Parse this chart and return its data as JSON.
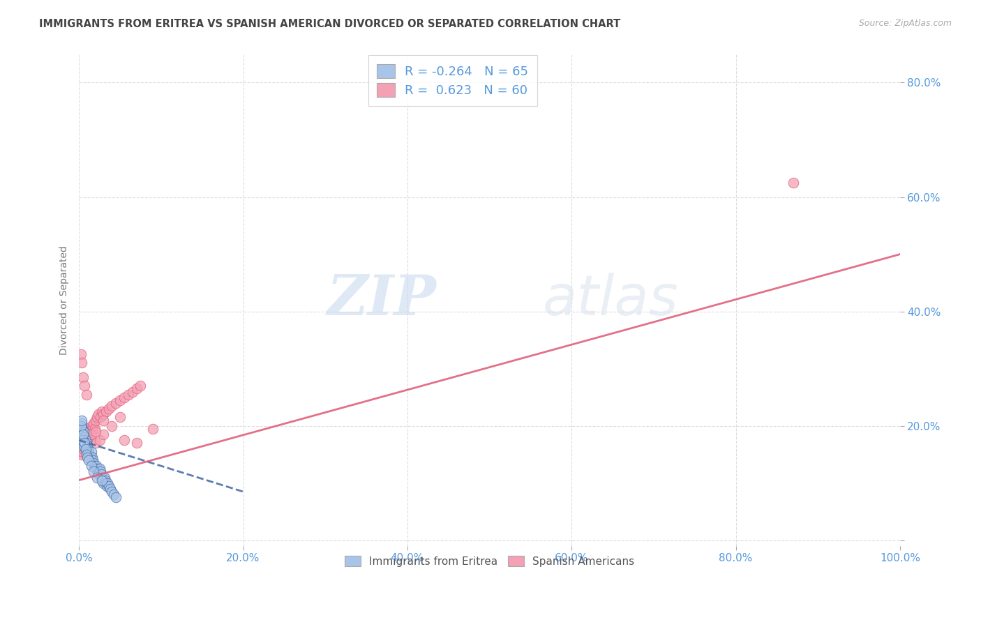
{
  "title": "IMMIGRANTS FROM ERITREA VS SPANISH AMERICAN DIVORCED OR SEPARATED CORRELATION CHART",
  "source": "Source: ZipAtlas.com",
  "ylabel": "Divorced or Separated",
  "watermark_zip": "ZIP",
  "watermark_atlas": "atlas",
  "xlim": [
    0.0,
    1.0
  ],
  "ylim": [
    -0.01,
    0.85
  ],
  "xticks": [
    0.0,
    0.2,
    0.4,
    0.6,
    0.8,
    1.0
  ],
  "yticks": [
    0.0,
    0.2,
    0.4,
    0.6,
    0.8
  ],
  "ytick_labels": [
    "",
    "20.0%",
    "40.0%",
    "60.0%",
    "80.0%"
  ],
  "xtick_labels": [
    "0.0%",
    "20.0%",
    "40.0%",
    "60.0%",
    "80.0%",
    "100.0%"
  ],
  "blue_R": -0.264,
  "blue_N": 65,
  "pink_R": 0.623,
  "pink_N": 60,
  "blue_color": "#a8c4e8",
  "pink_color": "#f4a0b5",
  "blue_line_color": "#4a6fa5",
  "pink_line_color": "#e0607a",
  "axis_label_color": "#5599dd",
  "title_color": "#444444",
  "grid_color": "#dddddd",
  "background_color": "#ffffff",
  "blue_scatter_x": [
    0.001,
    0.002,
    0.002,
    0.003,
    0.003,
    0.003,
    0.004,
    0.004,
    0.005,
    0.005,
    0.006,
    0.006,
    0.007,
    0.007,
    0.008,
    0.008,
    0.009,
    0.01,
    0.01,
    0.011,
    0.012,
    0.013,
    0.014,
    0.015,
    0.015,
    0.016,
    0.017,
    0.018,
    0.019,
    0.02,
    0.021,
    0.022,
    0.023,
    0.024,
    0.025,
    0.026,
    0.027,
    0.028,
    0.029,
    0.03,
    0.031,
    0.032,
    0.033,
    0.034,
    0.035,
    0.036,
    0.038,
    0.04,
    0.042,
    0.045,
    0.001,
    0.002,
    0.003,
    0.004,
    0.005,
    0.006,
    0.007,
    0.008,
    0.009,
    0.01,
    0.012,
    0.015,
    0.018,
    0.022,
    0.028
  ],
  "blue_scatter_y": [
    0.195,
    0.185,
    0.2,
    0.175,
    0.19,
    0.205,
    0.18,
    0.195,
    0.17,
    0.185,
    0.175,
    0.19,
    0.165,
    0.18,
    0.16,
    0.175,
    0.17,
    0.165,
    0.155,
    0.16,
    0.155,
    0.15,
    0.145,
    0.14,
    0.155,
    0.145,
    0.14,
    0.135,
    0.13,
    0.125,
    0.13,
    0.125,
    0.12,
    0.115,
    0.125,
    0.12,
    0.115,
    0.11,
    0.105,
    0.1,
    0.11,
    0.105,
    0.1,
    0.095,
    0.1,
    0.095,
    0.09,
    0.085,
    0.08,
    0.075,
    0.165,
    0.2,
    0.21,
    0.175,
    0.185,
    0.165,
    0.17,
    0.16,
    0.15,
    0.145,
    0.14,
    0.13,
    0.12,
    0.11,
    0.105
  ],
  "pink_scatter_x": [
    0.001,
    0.002,
    0.003,
    0.004,
    0.005,
    0.005,
    0.006,
    0.007,
    0.008,
    0.009,
    0.01,
    0.011,
    0.012,
    0.013,
    0.014,
    0.015,
    0.016,
    0.017,
    0.018,
    0.019,
    0.02,
    0.022,
    0.024,
    0.026,
    0.028,
    0.03,
    0.033,
    0.036,
    0.04,
    0.045,
    0.05,
    0.055,
    0.06,
    0.065,
    0.07,
    0.075,
    0.002,
    0.003,
    0.005,
    0.007,
    0.009,
    0.012,
    0.015,
    0.02,
    0.025,
    0.03,
    0.04,
    0.05,
    0.07,
    0.09,
    0.002,
    0.004,
    0.006,
    0.008,
    0.01,
    0.015,
    0.02,
    0.03,
    0.055,
    0.87
  ],
  "pink_scatter_y": [
    0.155,
    0.16,
    0.165,
    0.155,
    0.17,
    0.16,
    0.175,
    0.165,
    0.17,
    0.175,
    0.18,
    0.185,
    0.19,
    0.185,
    0.195,
    0.2,
    0.195,
    0.2,
    0.205,
    0.195,
    0.21,
    0.215,
    0.22,
    0.215,
    0.225,
    0.22,
    0.225,
    0.23,
    0.235,
    0.24,
    0.245,
    0.25,
    0.255,
    0.26,
    0.265,
    0.27,
    0.325,
    0.31,
    0.285,
    0.27,
    0.255,
    0.185,
    0.175,
    0.17,
    0.175,
    0.185,
    0.2,
    0.215,
    0.17,
    0.195,
    0.15,
    0.155,
    0.16,
    0.17,
    0.175,
    0.185,
    0.19,
    0.21,
    0.175,
    0.625
  ],
  "blue_line_x": [
    0.0,
    0.2
  ],
  "blue_line_y": [
    0.175,
    0.085
  ],
  "pink_line_x": [
    0.0,
    1.0
  ],
  "pink_line_y": [
    0.105,
    0.5
  ]
}
